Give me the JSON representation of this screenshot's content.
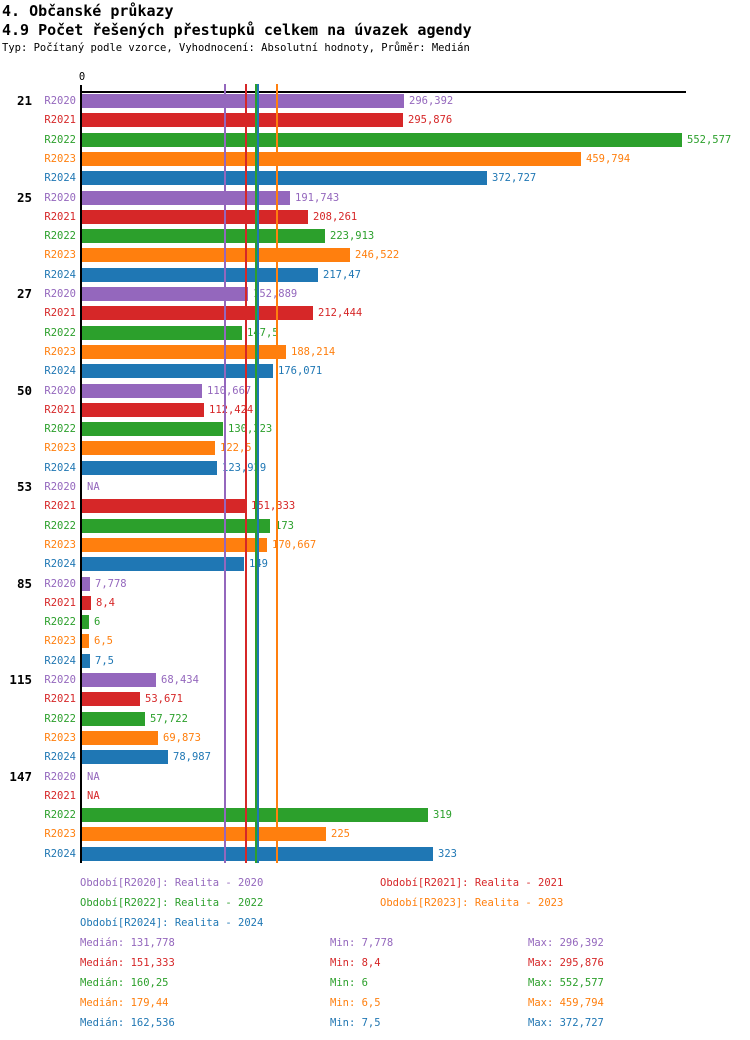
{
  "header": {
    "title1": "4. Občanské průkazy",
    "title2": "4.9 Počet řešených přestupků celkem na úvazek agendy",
    "subtitle": "Typ: Počítaný podle vzorce, Vyhodnocení: Absolutní hodnoty, Průměr: Medián"
  },
  "chart_data": {
    "type": "bar",
    "orientation": "horizontal",
    "value_axis": {
      "zero_label": "0",
      "min": 0,
      "max": 555,
      "grid": false
    },
    "series": [
      {
        "id": "R2020",
        "name": "Realita - 2020",
        "color": "#9467bd",
        "median": 131.778,
        "min": 7.778,
        "max": 296.392
      },
      {
        "id": "R2021",
        "name": "Realita - 2021",
        "color": "#d62728",
        "median": 151.333,
        "min": 8.4,
        "max": 295.876
      },
      {
        "id": "R2022",
        "name": "Realita - 2022",
        "color": "#2ca02c",
        "median": 160.25,
        "min": 6,
        "max": 552.577
      },
      {
        "id": "R2023",
        "name": "Realita - 2023",
        "color": "#ff7f0e",
        "median": 179.44,
        "min": 6.5,
        "max": 459.794
      },
      {
        "id": "R2024",
        "name": "Realita - 2024",
        "color": "#1f77b4",
        "median": 162.536,
        "min": 7.5,
        "max": 372.727
      }
    ],
    "median_lines_shown": true,
    "groups": [
      {
        "label": "21",
        "values": [
          296.392,
          295.876,
          552.577,
          459.794,
          372.727
        ],
        "displays": [
          "296,392",
          "295,876",
          "552,577",
          "459,794",
          "372,727"
        ]
      },
      {
        "label": "25",
        "values": [
          191.743,
          208.261,
          223.913,
          246.522,
          217.47
        ],
        "displays": [
          "191,743",
          "208,261",
          "223,913",
          "246,522",
          "217,47"
        ]
      },
      {
        "label": "27",
        "values": [
          152.889,
          212.444,
          147.5,
          188.214,
          176.071
        ],
        "displays": [
          "152,889",
          "212,444",
          "147,5",
          "188,214",
          "176,071"
        ]
      },
      {
        "label": "50",
        "values": [
          110.667,
          112.424,
          130.323,
          122.5,
          123.929
        ],
        "displays": [
          "110,667",
          "112,424",
          "130,323",
          "122,5",
          "123,929"
        ]
      },
      {
        "label": "53",
        "values": [
          null,
          151.333,
          173,
          170.667,
          149
        ],
        "displays": [
          "NA",
          "151,333",
          "173",
          "170,667",
          "149"
        ]
      },
      {
        "label": "85",
        "values": [
          7.778,
          8.4,
          6,
          6.5,
          7.5
        ],
        "displays": [
          "7,778",
          "8,4",
          "6",
          "6,5",
          "7,5"
        ]
      },
      {
        "label": "115",
        "values": [
          68.434,
          53.671,
          57.722,
          69.873,
          78.987
        ],
        "displays": [
          "68,434",
          "53,671",
          "57,722",
          "69,873",
          "78,987"
        ]
      },
      {
        "label": "147",
        "values": [
          null,
          null,
          319,
          225,
          323
        ],
        "displays": [
          "NA",
          "NA",
          "319",
          "225",
          "323"
        ]
      }
    ]
  },
  "legend": {
    "items": [
      {
        "text": "Období[R2020]: Realita - 2020"
      },
      {
        "text": "Období[R2021]: Realita - 2021"
      },
      {
        "text": "Období[R2022]: Realita - 2022"
      },
      {
        "text": "Období[R2023]: Realita - 2023"
      },
      {
        "text": "Období[R2024]: Realita - 2024"
      }
    ]
  },
  "stats": {
    "rows": [
      {
        "median": "Medián: 131,778",
        "min": "Min: 7,778",
        "max": "Max: 296,392"
      },
      {
        "median": "Medián: 151,333",
        "min": "Min: 8,4",
        "max": "Max: 295,876"
      },
      {
        "median": "Medián: 160,25",
        "min": "Min: 6",
        "max": "Max: 552,577"
      },
      {
        "median": "Medián: 179,44",
        "min": "Min: 6,5",
        "max": "Max: 459,794"
      },
      {
        "median": "Medián: 162,536",
        "min": "Min: 7,5",
        "max": "Max: 372,727"
      }
    ]
  }
}
